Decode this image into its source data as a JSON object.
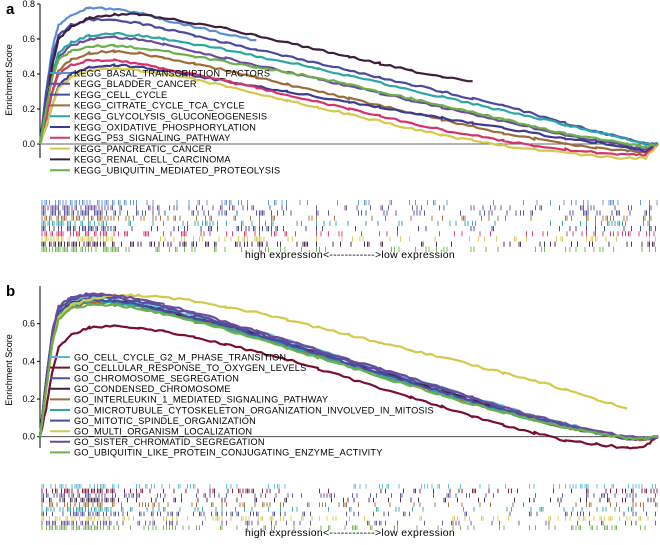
{
  "chart_data": [
    {
      "type": "line",
      "panel_label": "a",
      "ylabel": "Enrichment Score",
      "xlabel": "high expression<------------>low expression",
      "ylim": [
        -0.08,
        0.8
      ],
      "yticks": [
        0.0,
        0.2,
        0.4,
        0.6,
        0.8
      ],
      "x": [
        0,
        1,
        2,
        3,
        5,
        8,
        12,
        16,
        20,
        25,
        30,
        35,
        40,
        45,
        50,
        55,
        60,
        65,
        70,
        75,
        80,
        85,
        90,
        95,
        98,
        100
      ],
      "series": [
        {
          "name": "KEGG_BASAL_TRANSCRIPTION_FACTORS",
          "color": "#5b8fd4",
          "values": [
            0,
            0.3,
            0.55,
            0.68,
            0.74,
            0.78,
            0.77,
            0.75,
            0.71,
            0.67,
            0.63,
            0.59,
            null,
            null,
            null,
            null,
            null,
            null,
            null,
            null,
            null,
            null,
            null,
            null,
            null,
            null
          ]
        },
        {
          "name": "KEGG_BLADDER_CANCER",
          "color": "#6b4c9a",
          "values": [
            0,
            0.2,
            0.4,
            0.5,
            0.56,
            0.6,
            0.61,
            0.6,
            0.57,
            0.53,
            0.49,
            0.45,
            0.41,
            0.37,
            0.33,
            0.29,
            0.25,
            0.21,
            0.17,
            0.13,
            0.09,
            0.05,
            0.02,
            -0.01,
            -0.03,
            0
          ]
        },
        {
          "name": "KEGG_CELL_CYCLE",
          "color": "#4a4a9e",
          "values": [
            0,
            0.3,
            0.5,
            0.62,
            0.68,
            0.71,
            0.71,
            0.69,
            0.66,
            0.62,
            0.58,
            0.54,
            0.5,
            0.46,
            0.42,
            0.38,
            0.34,
            0.3,
            0.26,
            0.22,
            0.17,
            0.12,
            0.07,
            0.03,
            0.0,
            0
          ]
        },
        {
          "name": "KEGG_CITRATE_CYCLE_TCA_CYCLE",
          "color": "#9b6b3a",
          "values": [
            0,
            0.15,
            0.3,
            0.42,
            0.48,
            0.52,
            0.53,
            0.52,
            0.49,
            0.46,
            0.42,
            0.38,
            0.34,
            0.3,
            0.26,
            0.22,
            0.18,
            0.14,
            0.1,
            0.06,
            0.03,
            0.0,
            -0.02,
            -0.04,
            -0.05,
            0
          ]
        },
        {
          "name": "KEGG_GLYCOLYSIS_GLUCONEOGENESIS",
          "color": "#2ca6a4",
          "values": [
            0,
            0.2,
            0.4,
            0.52,
            0.58,
            0.62,
            0.63,
            0.62,
            0.6,
            0.57,
            0.54,
            0.5,
            0.47,
            0.43,
            0.39,
            0.35,
            0.31,
            0.27,
            0.23,
            0.19,
            0.15,
            0.11,
            0.07,
            0.03,
            0.0,
            0
          ]
        },
        {
          "name": "KEGG_OXIDATIVE_PHOSPHORYLATION",
          "color": "#3b3b8f",
          "values": [
            0,
            0.1,
            0.22,
            0.33,
            0.4,
            0.44,
            0.45,
            0.44,
            0.42,
            0.39,
            0.36,
            0.33,
            0.3,
            0.27,
            0.24,
            0.21,
            0.18,
            0.15,
            0.12,
            0.09,
            0.06,
            0.03,
            0.01,
            -0.02,
            -0.04,
            0
          ]
        },
        {
          "name": "KEGG_P53_SIGNALING_PATHWAY",
          "color": "#d6336c",
          "values": [
            0,
            0.15,
            0.3,
            0.4,
            0.45,
            0.48,
            0.48,
            0.46,
            0.43,
            0.4,
            0.36,
            0.32,
            0.28,
            0.24,
            0.2,
            0.16,
            0.12,
            0.08,
            0.05,
            0.02,
            -0.01,
            -0.03,
            -0.05,
            -0.06,
            -0.06,
            0
          ]
        },
        {
          "name": "KEGG_PANCREATIC_CANCER",
          "color": "#d4c94a",
          "values": [
            0,
            0.1,
            0.22,
            0.32,
            0.38,
            0.42,
            0.43,
            0.42,
            0.4,
            0.37,
            0.33,
            0.29,
            0.25,
            0.21,
            0.17,
            0.13,
            0.09,
            0.05,
            0.02,
            -0.01,
            -0.03,
            -0.05,
            -0.07,
            -0.08,
            -0.08,
            0
          ]
        },
        {
          "name": "KEGG_RENAL_CELL_CARCINOMA",
          "color": "#3d1f3d",
          "values": [
            0,
            0.2,
            0.45,
            0.6,
            0.67,
            0.72,
            0.74,
            0.74,
            0.72,
            0.69,
            0.66,
            0.62,
            0.58,
            0.54,
            0.5,
            0.46,
            0.42,
            0.38,
            0.36,
            null,
            null,
            null,
            null,
            null,
            null,
            null
          ]
        },
        {
          "name": "KEGG_UBIQUITIN_MEDIATED_PROTEOLYSIS",
          "color": "#6ab04c",
          "values": [
            0,
            0.2,
            0.38,
            0.48,
            0.53,
            0.56,
            0.56,
            0.55,
            0.53,
            0.5,
            0.47,
            0.44,
            0.41,
            0.38,
            0.34,
            0.3,
            0.26,
            0.22,
            0.18,
            0.14,
            0.1,
            0.06,
            0.03,
            0.0,
            -0.02,
            0
          ]
        }
      ]
    },
    {
      "type": "line",
      "panel_label": "b",
      "ylabel": "Enrichment Score",
      "xlabel": "high expression<------------>low expression",
      "ylim": [
        -0.06,
        0.8
      ],
      "yticks": [
        0.0,
        0.2,
        0.4,
        0.6
      ],
      "x": [
        0,
        1,
        2,
        3,
        5,
        8,
        12,
        16,
        20,
        25,
        30,
        35,
        40,
        45,
        50,
        55,
        60,
        65,
        70,
        75,
        80,
        85,
        90,
        95,
        98,
        100
      ],
      "series": [
        {
          "name": "GO_CELL_CYCLE_G2_M_PHASE_TRANSITION",
          "color": "#5bb8d4",
          "values": [
            0,
            0.3,
            0.55,
            0.67,
            0.72,
            0.74,
            0.73,
            0.71,
            0.68,
            0.64,
            0.6,
            0.56,
            0.51,
            0.46,
            0.41,
            0.36,
            0.31,
            0.26,
            0.21,
            0.16,
            0.11,
            0.07,
            0.03,
            0.0,
            -0.01,
            0
          ]
        },
        {
          "name": "GO_CELLULAR_RESPONSE_TO_OXYGEN_LEVELS",
          "color": "#7a1030",
          "values": [
            0,
            0.15,
            0.35,
            0.47,
            0.54,
            0.58,
            0.59,
            0.58,
            0.56,
            0.53,
            0.49,
            0.45,
            0.41,
            0.36,
            0.31,
            0.26,
            0.21,
            0.16,
            0.11,
            0.06,
            0.02,
            -0.02,
            -0.04,
            -0.06,
            -0.05,
            0
          ]
        },
        {
          "name": "GO_CHROMOSOME_SEGREGATION",
          "color": "#5050a0",
          "values": [
            0,
            0.3,
            0.55,
            0.68,
            0.73,
            0.75,
            0.74,
            0.72,
            0.69,
            0.65,
            0.6,
            0.55,
            0.5,
            0.45,
            0.4,
            0.35,
            0.3,
            0.25,
            0.2,
            0.15,
            0.1,
            0.06,
            0.02,
            -0.01,
            -0.01,
            0
          ]
        },
        {
          "name": "GO_CONDENSED_CHROMOSOME",
          "color": "#3d1f3d",
          "values": [
            0,
            0.3,
            0.54,
            0.66,
            0.71,
            0.73,
            0.72,
            0.7,
            0.67,
            0.63,
            0.59,
            0.54,
            0.49,
            0.44,
            0.39,
            0.34,
            0.29,
            0.24,
            0.19,
            0.14,
            0.09,
            0.05,
            0.02,
            -0.01,
            -0.01,
            0
          ]
        },
        {
          "name": "GO_INTERLEUKIN_1_MEDIATED_SIGNALING_PATHWAY",
          "color": "#9b6b3a",
          "values": [
            0,
            0.25,
            0.5,
            0.63,
            0.69,
            0.71,
            0.71,
            0.69,
            0.66,
            0.62,
            0.58,
            0.53,
            0.48,
            0.43,
            0.38,
            0.33,
            0.28,
            0.23,
            0.18,
            0.13,
            0.09,
            0.05,
            0.02,
            -0.01,
            -0.02,
            0
          ]
        },
        {
          "name": "GO_MICROTUBULE_CYTOSKELETON_ORGANIZATION_INVOLVED_IN_MITOSIS",
          "color": "#2ca6a4",
          "values": [
            0,
            0.28,
            0.52,
            0.65,
            0.7,
            0.72,
            0.71,
            0.69,
            0.66,
            0.62,
            0.58,
            0.53,
            0.48,
            0.43,
            0.38,
            0.33,
            0.28,
            0.23,
            0.18,
            0.13,
            0.09,
            0.05,
            0.02,
            -0.01,
            -0.01,
            0
          ]
        },
        {
          "name": "GO_MITOTIC_SPINDLE_ORGANIZATION",
          "color": "#4a4a9e",
          "values": [
            0,
            0.28,
            0.53,
            0.66,
            0.71,
            0.73,
            0.72,
            0.7,
            0.67,
            0.63,
            0.59,
            0.54,
            0.49,
            0.44,
            0.39,
            0.34,
            0.29,
            0.24,
            0.19,
            0.14,
            0.1,
            0.06,
            0.02,
            -0.01,
            -0.01,
            0
          ]
        },
        {
          "name": "GO_MULTI_ORGANISM_LOCALIZATION",
          "color": "#d4c94a",
          "values": [
            0,
            0.25,
            0.5,
            0.63,
            0.7,
            0.73,
            0.75,
            0.75,
            0.74,
            0.72,
            0.69,
            0.66,
            0.62,
            0.58,
            0.54,
            0.5,
            0.46,
            0.42,
            0.38,
            0.34,
            0.3,
            0.25,
            0.2,
            0.15,
            null,
            null
          ]
        },
        {
          "name": "GO_SISTER_CHROMATID_SEGREGATION",
          "color": "#6b4c9a",
          "values": [
            0,
            0.3,
            0.56,
            0.69,
            0.74,
            0.76,
            0.75,
            0.73,
            0.7,
            0.66,
            0.61,
            0.56,
            0.51,
            0.46,
            0.41,
            0.36,
            0.31,
            0.26,
            0.21,
            0.16,
            0.11,
            0.07,
            0.03,
            0.0,
            -0.01,
            0
          ]
        },
        {
          "name": "GO_UBIQUITIN_LIKE_PROTEIN_CONJUGATING_ENZYME_ACTIVITY",
          "color": "#6ab04c",
          "values": [
            0,
            0.25,
            0.5,
            0.62,
            0.68,
            0.7,
            0.7,
            0.68,
            0.65,
            0.61,
            0.57,
            0.52,
            0.47,
            0.42,
            0.37,
            0.32,
            0.27,
            0.22,
            0.17,
            0.13,
            0.09,
            0.05,
            0.02,
            -0.01,
            -0.01,
            0
          ]
        }
      ]
    }
  ]
}
